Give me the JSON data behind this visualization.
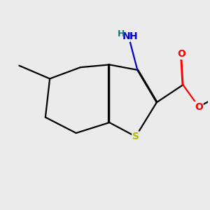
{
  "background_color": "#ebebeb",
  "figsize": [
    3.0,
    3.0
  ],
  "dpi": 100,
  "atom_colors": {
    "S": "#b8b800",
    "N": "#0000cc",
    "O": "#ff0000",
    "H": "#008080",
    "C": "#000000"
  },
  "bond_color": "#000000",
  "bond_width": 1.6
}
